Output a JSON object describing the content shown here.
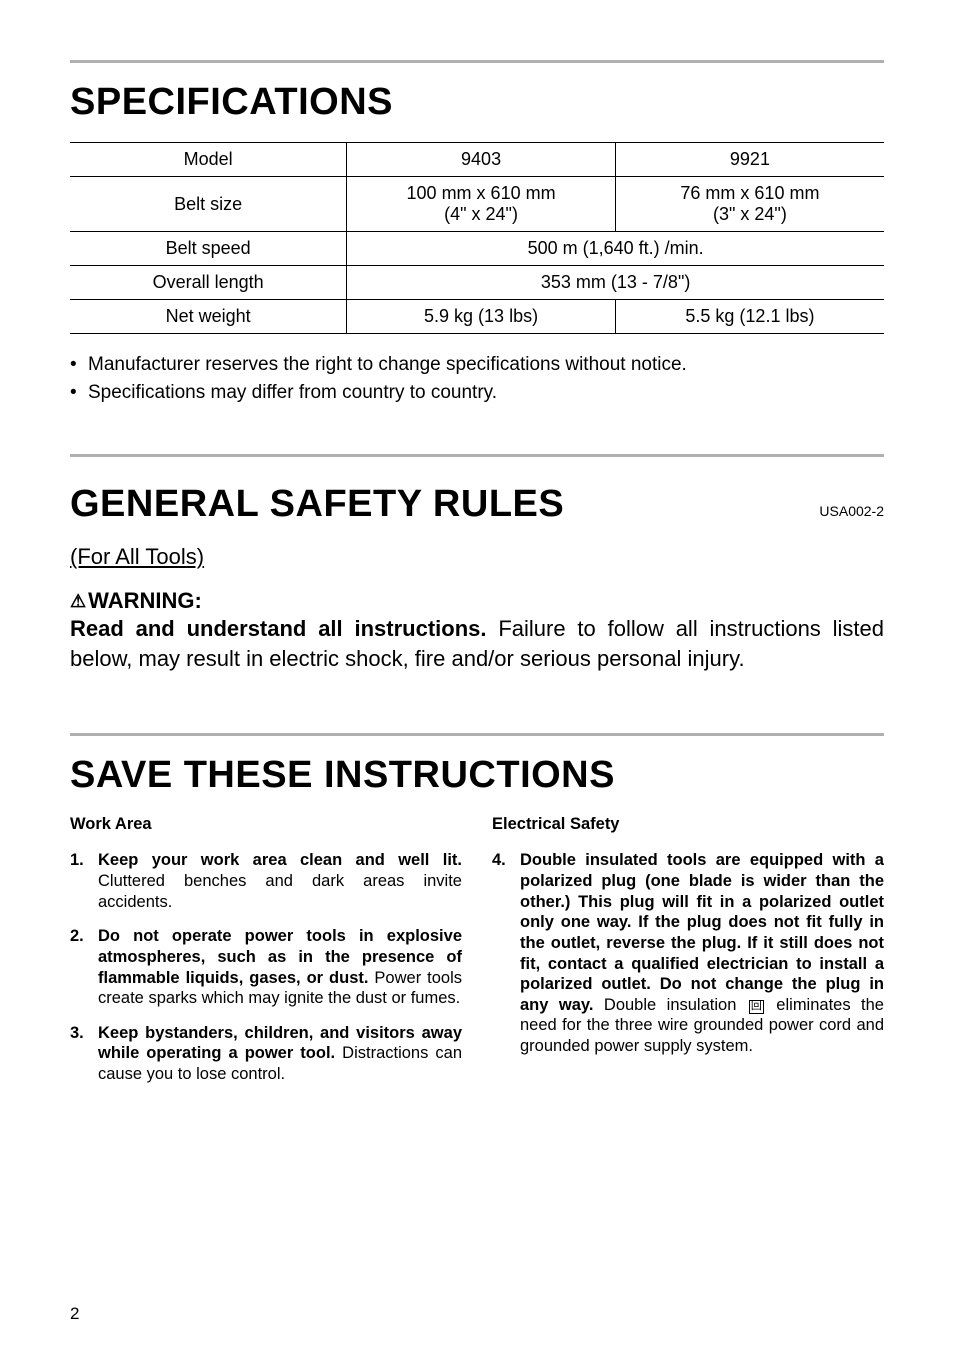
{
  "headings": {
    "specifications": "SPECIFICATIONS",
    "general_safety": "GENERAL SAFETY RULES",
    "save_instructions": "SAVE THESE INSTRUCTIONS"
  },
  "safety_code": "USA002-2",
  "for_all_tools": "(For All Tools)",
  "warning": {
    "label": "WARNING:",
    "lead": "Read and understand all instructions.",
    "rest": " Failure to follow all instructions listed below, may result in electric shock, fire and/or serious personal injury."
  },
  "spec_table": {
    "rows": [
      {
        "label": "Model",
        "c1": "9403",
        "c2": "9921"
      },
      {
        "label": "Belt size",
        "c1": "100 mm x 610 mm\n(4\" x 24\")",
        "c2": "76 mm x 610 mm\n(3\" x 24\")"
      },
      {
        "label": "Belt speed",
        "span": "500 m (1,640 ft.) /min."
      },
      {
        "label": "Overall length",
        "span": "353 mm (13 - 7/8\")"
      },
      {
        "label": "Net weight",
        "c1": "5.9 kg (13 lbs)",
        "c2": "5.5 kg (12.1 lbs)"
      }
    ]
  },
  "notes": [
    "Manufacturer reserves the right to change specifications without notice.",
    "Specifications may differ from country to country."
  ],
  "columns": {
    "left": {
      "heading": "Work Area",
      "items": [
        {
          "num": "1.",
          "bold": "Keep your work area clean and well lit.",
          "rest": " Cluttered benches and dark areas invite accidents."
        },
        {
          "num": "2.",
          "bold": "Do not operate power tools in explosive atmospheres, such as in the presence of flammable liquids, gases, or dust.",
          "rest": " Power tools create sparks which may ignite the dust or fumes."
        },
        {
          "num": "3.",
          "bold": "Keep bystanders, children, and visitors away while operating a power tool.",
          "rest": " Distractions can cause you to lose control."
        }
      ]
    },
    "right": {
      "heading": "Electrical Safety",
      "items": [
        {
          "num": "4.",
          "bold": "Double insulated tools are equipped with a polarized plug (one blade is wider than the other.) This plug will fit in a polarized outlet only one way. If the plug does not fit fully in the outlet, reverse the plug. If it still does not fit, contact a qualified electrician to install a polarized outlet. Do not change the plug in any way.",
          "rest_pre": " Double insulation ",
          "icon": "回",
          "rest_post": " eliminates the need for the three wire grounded power cord and grounded power supply system."
        }
      ]
    }
  },
  "page_number": "2"
}
